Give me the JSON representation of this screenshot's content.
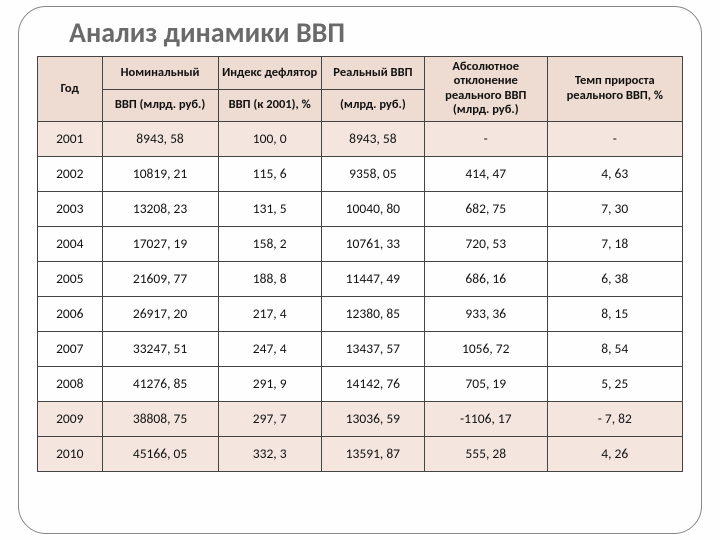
{
  "title": "Анализ динамики ВВП",
  "table": {
    "type": "table",
    "header_bg": "#eedcd2",
    "shade_bg": "#f4e6df",
    "border_color": "#444444",
    "title_color": "#6a6a6a",
    "title_fontsize": 28,
    "cell_fontsize": 13.5,
    "header_fontsize": 12.5,
    "col_widths_pct": [
      10,
      18,
      16,
      16,
      19,
      21
    ],
    "shaded_rows": [
      0,
      8,
      9
    ],
    "columns": [
      {
        "line1": "Год",
        "line2": ""
      },
      {
        "line1": "Номинальный",
        "line2": "ВВП (млрд. руб.)"
      },
      {
        "line1": "Индекс дефлятор",
        "line2": "ВВП (к 2001), %"
      },
      {
        "line1": "Реальный ВВП",
        "line2": "(млрд. руб.)"
      },
      {
        "line1": "Абсолютное отклонение реального ВВП",
        "line2": "(млрд. руб.)"
      },
      {
        "line1": "Темп прироста реального ВВП, %",
        "line2": ""
      }
    ],
    "rows": [
      [
        "2001",
        "8943, 58",
        "100, 0",
        "8943, 58",
        "-",
        "-"
      ],
      [
        "2002",
        "10819, 21",
        "115, 6",
        "9358, 05",
        "414, 47",
        "4, 63"
      ],
      [
        "2003",
        "13208, 23",
        "131, 5",
        "10040, 80",
        "682, 75",
        "7, 30"
      ],
      [
        "2004",
        "17027, 19",
        "158, 2",
        "10761, 33",
        "720, 53",
        "7, 18"
      ],
      [
        "2005",
        "21609, 77",
        "188, 8",
        "11447, 49",
        "686, 16",
        "6, 38"
      ],
      [
        "2006",
        "26917, 20",
        "217, 4",
        "12380, 85",
        "933, 36",
        "8, 15"
      ],
      [
        "2007",
        "33247, 51",
        "247, 4",
        "13437, 57",
        "1056, 72",
        "8, 54"
      ],
      [
        "2008",
        "41276, 85",
        "291, 9",
        "14142, 76",
        "705, 19",
        "5, 25"
      ],
      [
        "2009",
        "38808, 75",
        "297, 7",
        "13036, 59",
        "-1106, 17",
        "- 7, 82"
      ],
      [
        "2010",
        "45166, 05",
        "332, 3",
        "13591, 87",
        "555, 28",
        "4, 26"
      ]
    ]
  }
}
